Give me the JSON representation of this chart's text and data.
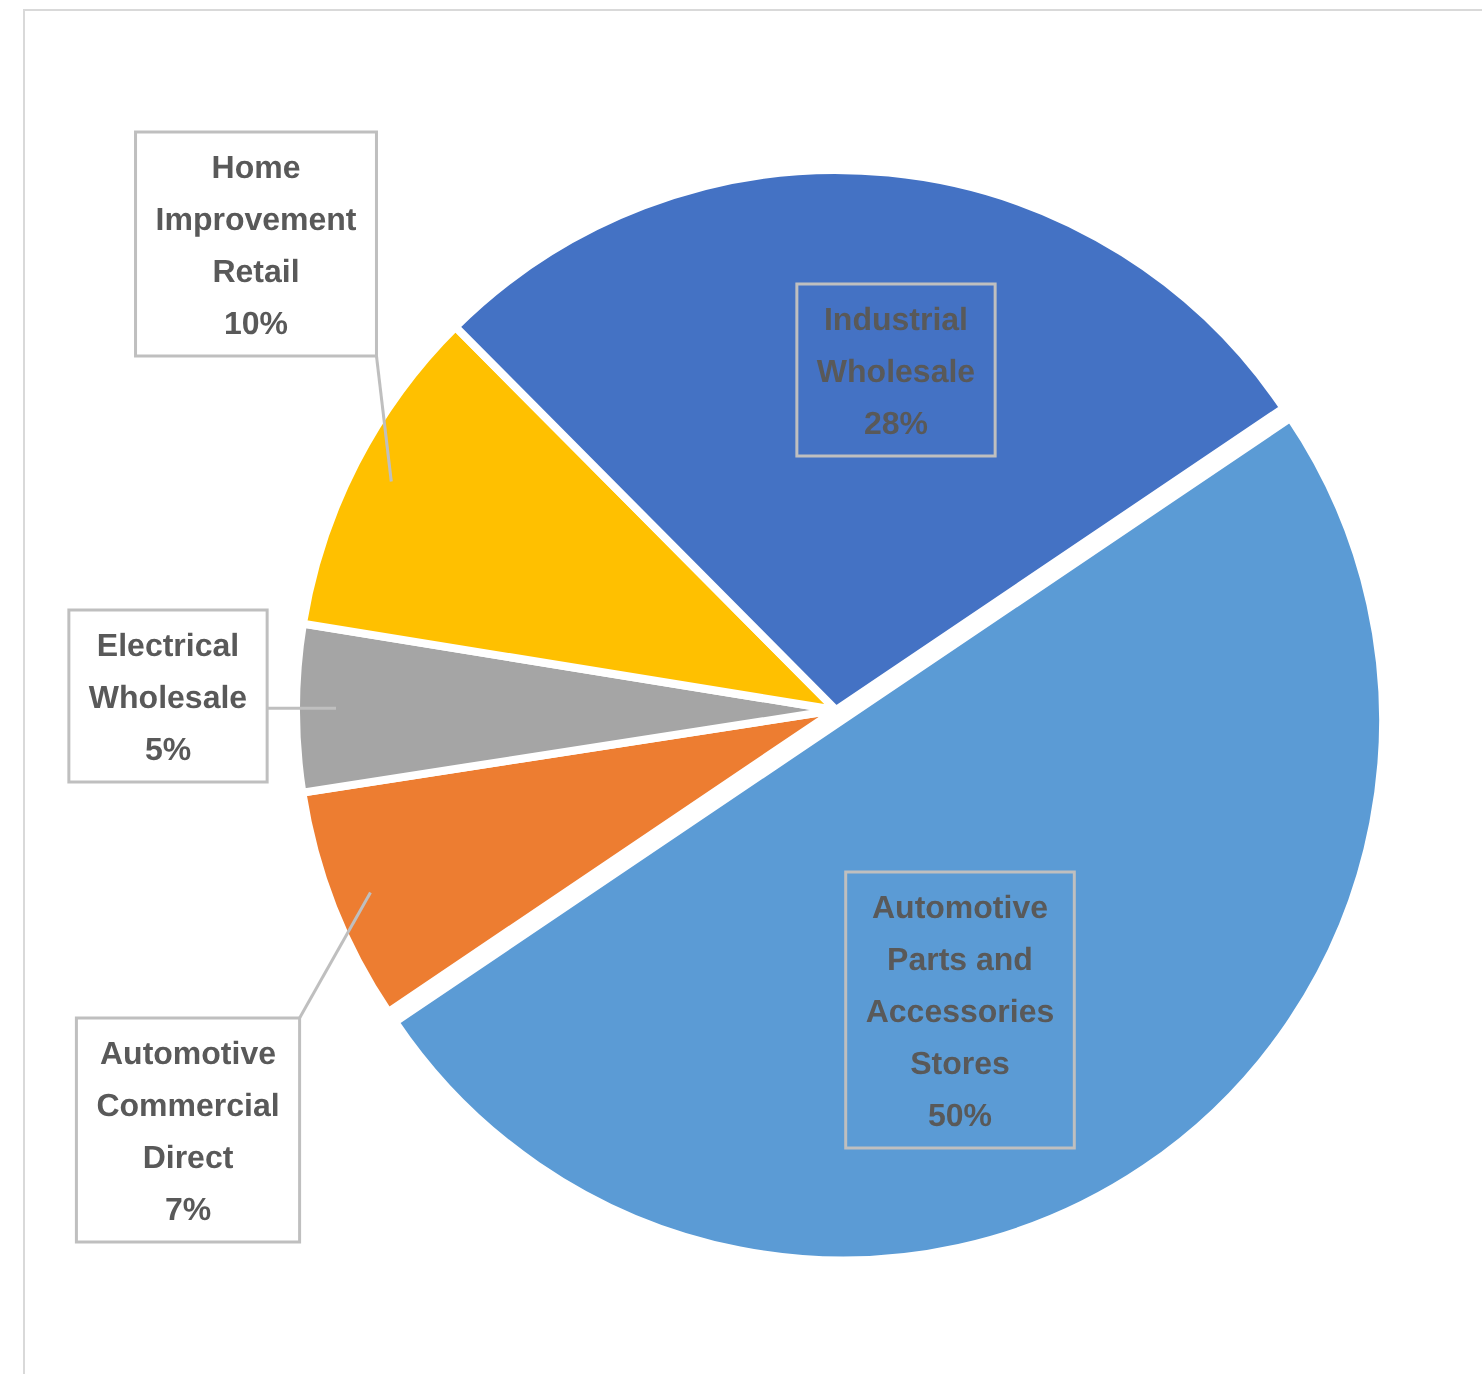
{
  "chart_data": {
    "type": "pie",
    "categories": [
      "Automotive Parts and Accessories Stores",
      "Automotive Commercial Direct",
      "Electrical Wholesale",
      "Home Improvement Retail",
      "Industrial Wholesale"
    ],
    "values": [
      50,
      7,
      5,
      10,
      28
    ],
    "value_labels": [
      "50%",
      "7%",
      "5%",
      "10%",
      "28%"
    ],
    "colors": [
      "#5b9bd5",
      "#ed7d31",
      "#a5a5a5",
      "#ffc000",
      "#4472c4"
    ]
  }
}
